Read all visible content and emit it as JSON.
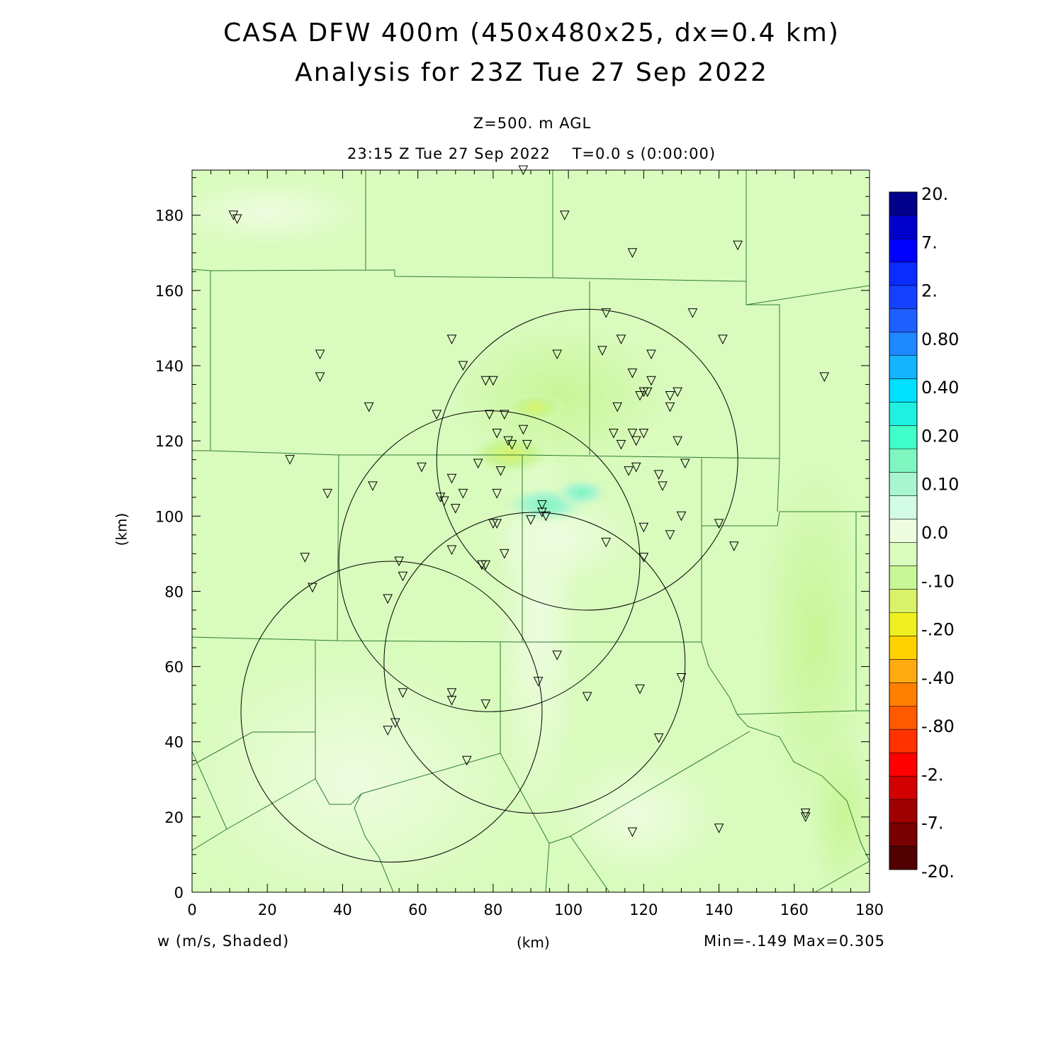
{
  "chart_data": {
    "type": "heatmap",
    "title": "CASA DFW 400m (450x480x25, dx=0.4 km)",
    "subtitle": "Analysis for 23Z Tue 27 Sep 2022",
    "level_label": "Z=500. m AGL",
    "time_label": "23:15 Z Tue 27 Sep 2022    T=0.0 s (0:00:00)",
    "variable_label": "w (m/s, Shaded)",
    "xlabel": "(km)",
    "ylabel": "(km)",
    "stats_label": "Min=-.149 Max=0.305",
    "xlim": [
      0,
      180
    ],
    "ylim": [
      0,
      192
    ],
    "xticks": [
      0,
      20,
      40,
      60,
      80,
      100,
      120,
      140,
      160,
      180
    ],
    "yticks": [
      0,
      20,
      40,
      60,
      80,
      100,
      120,
      140,
      160,
      180
    ],
    "colorbar": {
      "labels": [
        "20.",
        "7.",
        "2.",
        "0.80",
        "0.40",
        "0.20",
        "0.10",
        "0.0",
        "-.10",
        "-.20",
        "-.40",
        "-.80",
        "-2.",
        "-7.",
        "-20."
      ],
      "colors_top_to_bottom": [
        "#00008b",
        "#0000cd",
        "#0000ff",
        "#0a2cff",
        "#1440ff",
        "#1e60ff",
        "#1e88ff",
        "#14b4ff",
        "#00e0ff",
        "#20f0e0",
        "#40ffc8",
        "#7ff5c0",
        "#a8f5d0",
        "#d2fce8",
        "#eefce0",
        "#d9fbbd",
        "#c8f596",
        "#d8f26a",
        "#f0f020",
        "#ffd200",
        "#ffaa10",
        "#ff7f00",
        "#ff5a00",
        "#ff3200",
        "#ff0000",
        "#d20000",
        "#a00000",
        "#780000",
        "#500000"
      ]
    },
    "radar_rings": [
      {
        "cx": 105,
        "cy": 115,
        "r": 40
      },
      {
        "cx": 79,
        "cy": 88,
        "r": 40
      },
      {
        "cx": 91,
        "cy": 61,
        "r": 40
      },
      {
        "cx": 53,
        "cy": 48,
        "r": 40
      }
    ],
    "stations": [
      [
        11,
        180
      ],
      [
        12,
        179
      ],
      [
        88,
        192
      ],
      [
        99,
        180
      ],
      [
        117,
        170
      ],
      [
        145,
        172
      ],
      [
        34,
        143
      ],
      [
        34,
        137
      ],
      [
        26,
        115
      ],
      [
        36,
        106
      ],
      [
        47,
        129
      ],
      [
        48,
        108
      ],
      [
        30,
        89
      ],
      [
        32,
        81
      ],
      [
        52,
        78
      ],
      [
        55,
        88
      ],
      [
        56,
        84
      ],
      [
        69,
        147
      ],
      [
        72,
        140
      ],
      [
        78,
        136
      ],
      [
        80,
        136
      ],
      [
        65,
        127
      ],
      [
        79,
        127
      ],
      [
        83,
        127
      ],
      [
        81,
        122
      ],
      [
        88,
        123
      ],
      [
        84,
        120
      ],
      [
        85,
        119
      ],
      [
        89,
        119
      ],
      [
        61,
        113
      ],
      [
        76,
        114
      ],
      [
        82,
        112
      ],
      [
        66,
        105
      ],
      [
        67,
        104
      ],
      [
        72,
        106
      ],
      [
        69,
        110
      ],
      [
        70,
        102
      ],
      [
        81,
        106
      ],
      [
        93,
        103
      ],
      [
        93,
        101
      ],
      [
        94,
        100
      ],
      [
        90,
        99
      ],
      [
        80,
        98
      ],
      [
        81,
        98
      ],
      [
        69,
        91
      ],
      [
        77,
        87
      ],
      [
        78,
        87
      ],
      [
        83,
        90
      ],
      [
        97,
        143
      ],
      [
        109,
        144
      ],
      [
        110,
        154
      ],
      [
        114,
        147
      ],
      [
        122,
        143
      ],
      [
        117,
        138
      ],
      [
        122,
        136
      ],
      [
        119,
        132
      ],
      [
        120,
        133
      ],
      [
        121,
        133
      ],
      [
        127,
        132
      ],
      [
        129,
        133
      ],
      [
        127,
        129
      ],
      [
        113,
        129
      ],
      [
        112,
        122
      ],
      [
        117,
        122
      ],
      [
        120,
        122
      ],
      [
        114,
        119
      ],
      [
        118,
        120
      ],
      [
        129,
        120
      ],
      [
        118,
        113
      ],
      [
        116,
        112
      ],
      [
        124,
        111
      ],
      [
        125,
        108
      ],
      [
        131,
        114
      ],
      [
        127,
        95
      ],
      [
        130,
        100
      ],
      [
        133,
        154
      ],
      [
        141,
        147
      ],
      [
        168,
        137
      ],
      [
        140,
        98
      ],
      [
        144,
        92
      ],
      [
        120,
        97
      ],
      [
        110,
        93
      ],
      [
        120,
        89
      ],
      [
        97,
        63
      ],
      [
        92,
        56
      ],
      [
        105,
        52
      ],
      [
        119,
        54
      ],
      [
        130,
        57
      ],
      [
        124,
        41
      ],
      [
        69,
        53
      ],
      [
        69,
        51
      ],
      [
        78,
        50
      ],
      [
        56,
        53
      ],
      [
        54,
        45
      ],
      [
        52,
        43
      ],
      [
        73,
        35
      ],
      [
        117,
        16
      ],
      [
        140,
        17
      ],
      [
        163,
        21
      ],
      [
        163,
        20
      ]
    ]
  }
}
